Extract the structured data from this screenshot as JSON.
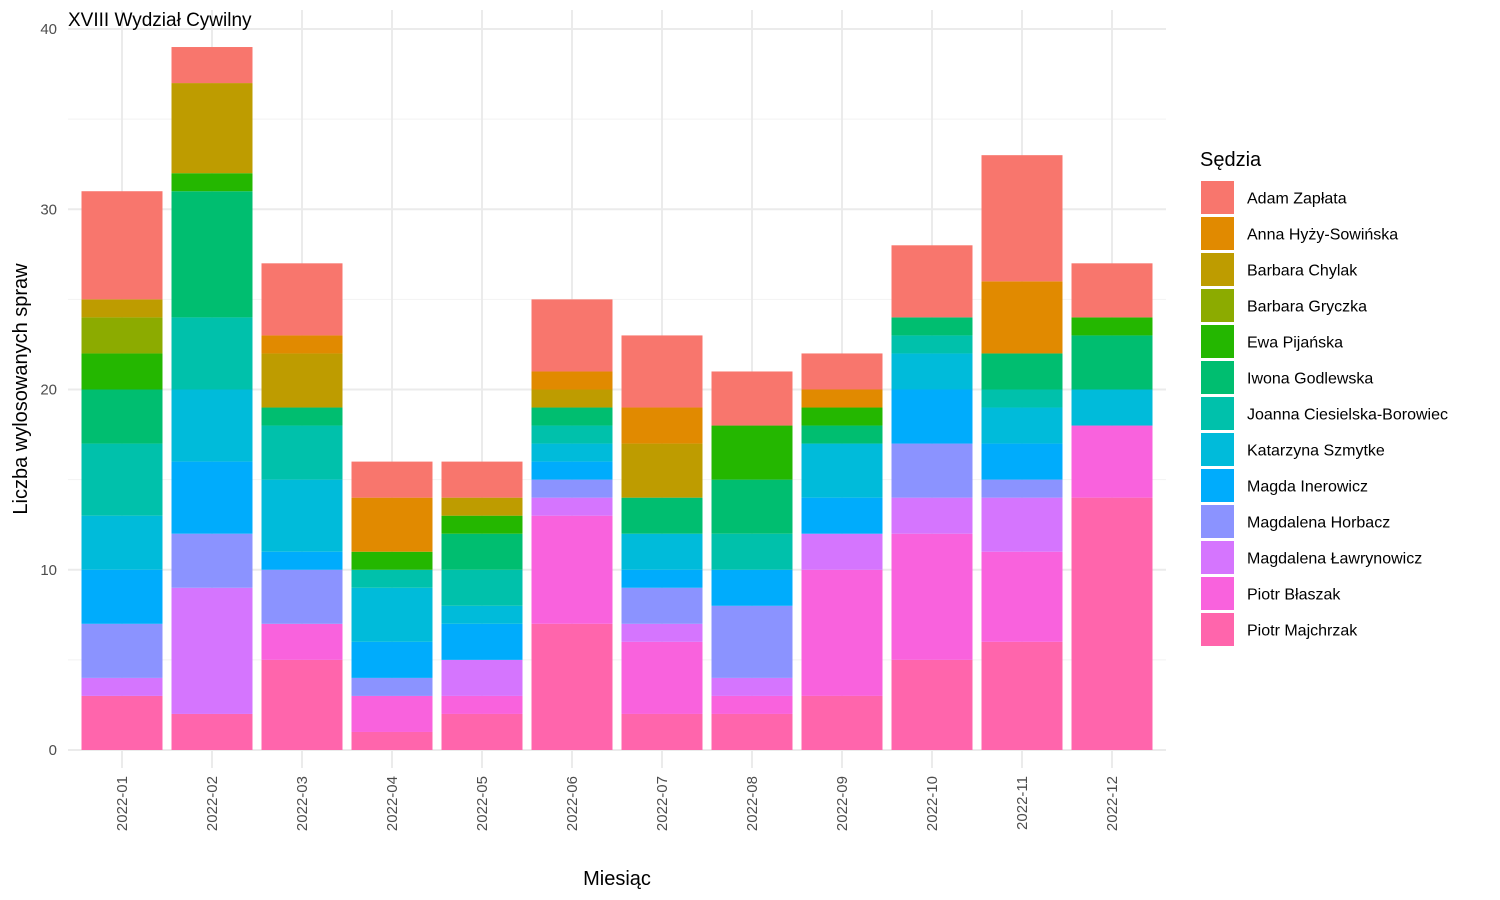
{
  "chart_data": {
    "type": "bar",
    "stacked": true,
    "title": "XVIII Wydział Cywilny",
    "xlabel": "Miesiąc",
    "ylabel": "Liczba wylosowanych spraw",
    "ylim": [
      0,
      40
    ],
    "yticks": [
      0,
      10,
      20,
      30,
      40
    ],
    "grid": true,
    "legend_title": "Sędzia",
    "legend_position": "right",
    "categories": [
      "2022-01",
      "2022-02",
      "2022-03",
      "2022-04",
      "2022-05",
      "2022-06",
      "2022-07",
      "2022-08",
      "2022-09",
      "2022-10",
      "2022-11",
      "2022-12"
    ],
    "series": [
      {
        "name": "Adam Zapłata",
        "color": "#F8766D",
        "values": [
          6,
          2,
          4,
          2,
          2,
          4,
          4,
          3,
          2,
          4,
          7,
          3
        ]
      },
      {
        "name": "Anna Hyży-Sowińska",
        "color": "#E18A00",
        "values": [
          0,
          0,
          1,
          3,
          0,
          1,
          2,
          0,
          1,
          0,
          4,
          0
        ]
      },
      {
        "name": "Barbara Chylak",
        "color": "#BE9C00",
        "values": [
          1,
          5,
          3,
          0,
          1,
          1,
          3,
          0,
          0,
          0,
          0,
          0
        ]
      },
      {
        "name": "Barbara Gryczka",
        "color": "#8CAB00",
        "values": [
          2,
          0,
          0,
          0,
          0,
          0,
          0,
          0,
          0,
          0,
          0,
          0
        ]
      },
      {
        "name": "Ewa Pijańska",
        "color": "#24B700",
        "values": [
          2,
          1,
          0,
          1,
          1,
          0,
          0,
          3,
          1,
          0,
          0,
          1
        ]
      },
      {
        "name": "Iwona Godlewska",
        "color": "#00BE70",
        "values": [
          3,
          7,
          1,
          0,
          2,
          1,
          2,
          3,
          1,
          1,
          2,
          3
        ]
      },
      {
        "name": "Joanna Ciesielska-Borowiec",
        "color": "#00C1AB",
        "values": [
          4,
          4,
          3,
          1,
          2,
          1,
          0,
          2,
          0,
          1,
          1,
          0
        ]
      },
      {
        "name": "Katarzyna Szmytke",
        "color": "#00BBDA",
        "values": [
          3,
          4,
          4,
          3,
          1,
          1,
          2,
          0,
          3,
          2,
          2,
          2
        ]
      },
      {
        "name": "Magda Inerowicz",
        "color": "#00ACFC",
        "values": [
          3,
          4,
          1,
          2,
          2,
          1,
          1,
          2,
          2,
          3,
          2,
          0
        ]
      },
      {
        "name": "Magdalena Horbacz",
        "color": "#8B93FF",
        "values": [
          3,
          3,
          3,
          1,
          0,
          1,
          2,
          4,
          0,
          3,
          1,
          0
        ]
      },
      {
        "name": "Magdalena Ławrynowicz",
        "color": "#D575FE",
        "values": [
          1,
          7,
          0,
          0,
          2,
          1,
          1,
          1,
          2,
          2,
          3,
          0
        ]
      },
      {
        "name": "Piotr Błaszak",
        "color": "#F962DD",
        "values": [
          0,
          0,
          2,
          2,
          1,
          6,
          4,
          1,
          7,
          7,
          5,
          4
        ]
      },
      {
        "name": "Piotr Majchrzak",
        "color": "#FF65AC",
        "values": [
          3,
          2,
          5,
          1,
          2,
          7,
          2,
          2,
          3,
          5,
          6,
          14
        ]
      }
    ]
  }
}
